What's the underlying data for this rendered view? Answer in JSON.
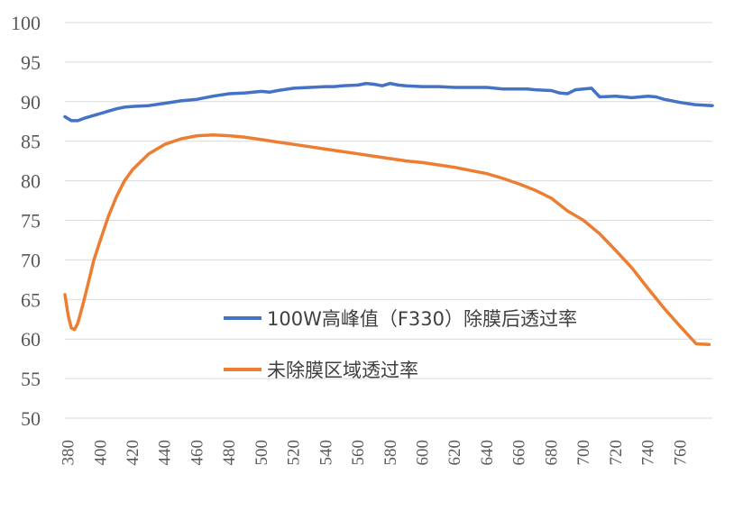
{
  "chart_data": {
    "type": "line",
    "title": "",
    "xlabel": "",
    "ylabel": "",
    "xlim": [
      378,
      780
    ],
    "ylim": [
      50,
      100
    ],
    "yticks": [
      50,
      55,
      60,
      65,
      70,
      75,
      80,
      85,
      90,
      95,
      100
    ],
    "xticks": [
      380,
      400,
      420,
      440,
      460,
      480,
      500,
      520,
      540,
      560,
      580,
      600,
      620,
      640,
      660,
      680,
      700,
      720,
      740,
      760
    ],
    "grid": true,
    "legend_position": "lower-right, inside plot",
    "series": [
      {
        "name": "100W高峰值（F330）除膜后透过率",
        "color": "#4472C4",
        "x": [
          378,
          382,
          386,
          390,
          395,
          400,
          405,
          410,
          415,
          420,
          430,
          440,
          450,
          460,
          470,
          480,
          490,
          500,
          505,
          510,
          520,
          530,
          540,
          545,
          550,
          560,
          565,
          570,
          575,
          580,
          585,
          590,
          600,
          610,
          620,
          630,
          640,
          645,
          650,
          660,
          665,
          670,
          680,
          685,
          690,
          695,
          700,
          705,
          710,
          720,
          730,
          740,
          745,
          750,
          760,
          770,
          780
        ],
        "values": [
          88.1,
          87.6,
          87.6,
          87.9,
          88.2,
          88.5,
          88.8,
          89.1,
          89.3,
          89.4,
          89.5,
          89.8,
          90.1,
          90.3,
          90.7,
          91.0,
          91.1,
          91.3,
          91.2,
          91.4,
          91.7,
          91.8,
          91.9,
          91.9,
          92.0,
          92.1,
          92.3,
          92.2,
          92.0,
          92.3,
          92.1,
          92.0,
          91.9,
          91.9,
          91.8,
          91.8,
          91.8,
          91.7,
          91.6,
          91.6,
          91.6,
          91.5,
          91.4,
          91.1,
          91.0,
          91.5,
          91.6,
          91.7,
          90.6,
          90.7,
          90.5,
          90.7,
          90.6,
          90.3,
          89.9,
          89.6,
          89.5
        ]
      },
      {
        "name": "未除膜区域透过率",
        "color": "#ED7D31",
        "x": [
          378,
          380,
          382,
          384,
          386,
          388,
          390,
          393,
          396,
          400,
          405,
          410,
          415,
          420,
          430,
          440,
          450,
          460,
          470,
          480,
          490,
          500,
          510,
          520,
          530,
          540,
          550,
          560,
          570,
          580,
          590,
          600,
          610,
          620,
          630,
          640,
          650,
          660,
          670,
          680,
          690,
          700,
          710,
          720,
          730,
          740,
          750,
          760,
          770,
          778
        ],
        "values": [
          65.6,
          63.0,
          61.4,
          61.2,
          62.0,
          63.5,
          65.0,
          67.5,
          70.0,
          72.5,
          75.5,
          78.0,
          80.0,
          81.4,
          83.4,
          84.6,
          85.3,
          85.7,
          85.8,
          85.7,
          85.5,
          85.2,
          84.9,
          84.6,
          84.3,
          84.0,
          83.7,
          83.4,
          83.1,
          82.8,
          82.5,
          82.3,
          82.0,
          81.7,
          81.3,
          80.9,
          80.3,
          79.6,
          78.8,
          77.8,
          76.2,
          75.0,
          73.3,
          71.2,
          69.0,
          66.4,
          63.9,
          61.6,
          59.4,
          59.3
        ]
      }
    ]
  }
}
